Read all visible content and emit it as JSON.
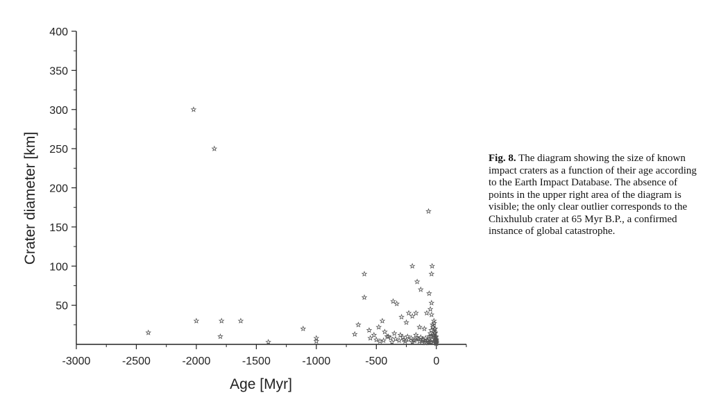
{
  "figure": {
    "caption_label": "Fig. 8.",
    "caption_text": "The diagram showing the size of known impact craters as a function of their age according to the Earth Impact Database. The absence of points in the upper right area of the diagram is visible; the only clear outlier corresponds to the Chixhulub crater at 65 Myr B.P., a confirmed instance of global catastrophe."
  },
  "chart_data": {
    "type": "scatter",
    "title": "",
    "xlabel": "Age [Myr]",
    "ylabel": "Crater diameter [km]",
    "xlim": [
      -3000,
      250
    ],
    "ylim": [
      0,
      400
    ],
    "xticks": [
      -3000,
      -2500,
      -2000,
      -1500,
      -1000,
      -500,
      0
    ],
    "yticks": [
      50,
      100,
      150,
      200,
      250,
      300,
      350,
      400
    ],
    "grid": false,
    "marker": "star",
    "x": [
      -2023,
      -1850,
      -2400,
      -2000,
      -1790,
      -1630,
      -1800,
      -1400,
      -1110,
      -1000,
      -1000,
      -65,
      -35,
      -40,
      -200,
      -40,
      -160,
      -130,
      -60,
      -600,
      -600,
      -80,
      -360,
      -330,
      -170,
      -230,
      -200,
      -290,
      -250,
      -140,
      -100,
      -50,
      -40,
      -20,
      -30,
      -15,
      -10,
      -5,
      -680,
      -650,
      -560,
      -520,
      -480,
      -450,
      -430,
      -410,
      -380,
      -350,
      -300,
      -270,
      -240,
      -210,
      -190,
      -170,
      -150,
      -130,
      -120,
      -110,
      -90,
      -70,
      -60,
      -50,
      -45,
      -35,
      -25,
      -20,
      -12,
      -8,
      -3,
      -2,
      -1,
      -550,
      -500,
      -470,
      -440,
      -400,
      -370,
      -340,
      -310,
      -280,
      -260,
      -230,
      -200,
      -180,
      -160,
      -140,
      -115,
      -95,
      -75,
      -55,
      -42,
      -30,
      -22,
      -16,
      -10,
      -6,
      -4,
      -2,
      -1,
      -0.5,
      -0.3,
      -85,
      -65,
      -48,
      -28,
      -18,
      -11,
      -7,
      -3
    ],
    "y": [
      300,
      250,
      15,
      30,
      30,
      30,
      10,
      3,
      20,
      8,
      4,
      170,
      100,
      90,
      100,
      53,
      80,
      70,
      65,
      90,
      60,
      40,
      55,
      52,
      40,
      40,
      36,
      35,
      28,
      22,
      20,
      45,
      38,
      30,
      25,
      20,
      15,
      10,
      13,
      25,
      18,
      12,
      22,
      30,
      16,
      10,
      8,
      14,
      12,
      6,
      10,
      8,
      5,
      12,
      7,
      9,
      4,
      6,
      8,
      5,
      10,
      14,
      3,
      6,
      12,
      4,
      8,
      3,
      5,
      2,
      6,
      8,
      6,
      4,
      5,
      10,
      3,
      7,
      5,
      9,
      4,
      6,
      3,
      5,
      8,
      4,
      6,
      2,
      5,
      3,
      18,
      25,
      12,
      15,
      20,
      7,
      9,
      4,
      3,
      2,
      1,
      2,
      3,
      10,
      22,
      27,
      14,
      9,
      6
    ]
  }
}
